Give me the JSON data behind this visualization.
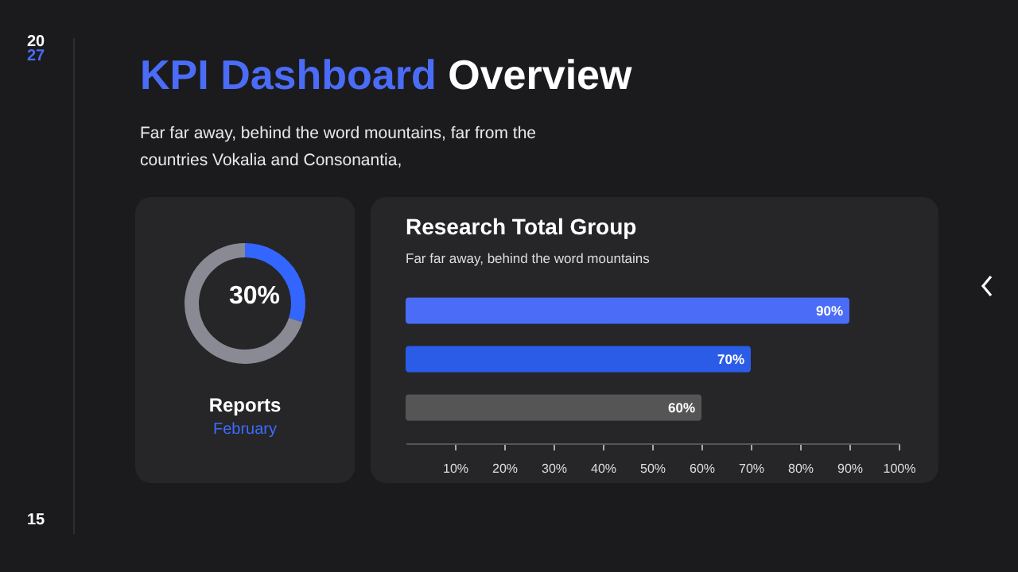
{
  "chart_data": [
    {
      "type": "other",
      "title": "KPI Dashboard Overview",
      "subtitle": "Far far away, behind the word mountains, far from the countries Vokalia and Consonantia,",
      "annotations": [
        "2027",
        "15"
      ]
    },
    {
      "type": "donut",
      "title": "Reports",
      "subtitle": "February",
      "categories": [
        null,
        null
      ],
      "values": [
        30,
        70
      ],
      "colors": [
        "#3366ff",
        "#8a8a95"
      ],
      "value_labels": [
        "30%",
        null
      ]
    },
    {
      "type": "bar",
      "orientation": "horizontal",
      "title": "Research Total Group",
      "subtitle": "Far far away, behind the word mountains",
      "categories": [
        null,
        null,
        null
      ],
      "values": [
        90,
        70,
        60
      ],
      "colors": [
        "#4a6cf7",
        "#2a5ce8",
        "#555555"
      ],
      "value_labels": [
        "90%",
        "70%",
        "60%"
      ],
      "xlim": [
        0,
        100
      ],
      "xticks": [
        {
          "value": 10,
          "label": "10%"
        },
        {
          "value": 20,
          "label": "20%"
        },
        {
          "value": 30,
          "label": "30%"
        },
        {
          "value": 40,
          "label": "40%"
        },
        {
          "value": 50,
          "label": "50%"
        },
        {
          "value": 60,
          "label": "60%"
        },
        {
          "value": 70,
          "label": "70%"
        },
        {
          "value": 80,
          "label": "80%"
        },
        {
          "value": 90,
          "label": "90%"
        },
        {
          "value": 100,
          "label": "100%"
        }
      ]
    }
  ]
}
